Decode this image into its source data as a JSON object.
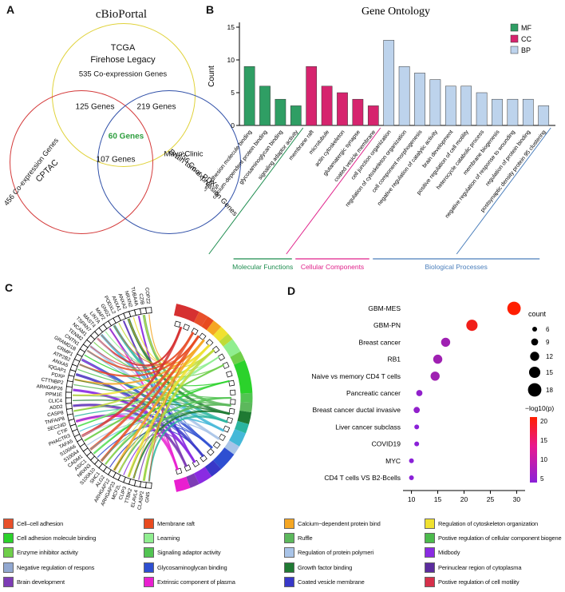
{
  "panel_labels": {
    "a": "A",
    "b": "B",
    "c": "C",
    "d": "D"
  },
  "venn": {
    "title": "cBioPortal",
    "tcga_line1": "TCGA",
    "tcga_line2": "Firehose Legacy",
    "tcga_count": "535 Co-expression Genes",
    "cptac_name": "CPTAC",
    "cptac_count": "456 Co-expression Genes",
    "mayo_line1": "Mayo Clinic",
    "mayo_line2": "Brain tumor PDXs",
    "mayo_count": "756 Co-expression Genes",
    "overlap_tcga_cptac": "125 Genes",
    "overlap_tcga_mayo": "219 Genes",
    "overlap_cptac_mayo": "107 Genes",
    "overlap_all": "60 Genes",
    "colors": {
      "tcga": "#E0D23A",
      "cptac": "#D43A3A",
      "mayo": "#3050A8",
      "center_text": "#2E9E3E"
    }
  },
  "chart_data": [
    {
      "type": "bar",
      "title": "Gene Ontology",
      "ylabel": "Count",
      "ylim": [
        0,
        15
      ],
      "yticks": [
        0,
        5,
        10,
        15
      ],
      "legend": [
        "MF",
        "CC",
        "BP"
      ],
      "groups": [
        {
          "name": "Molecular Functions",
          "abbr": "MF",
          "color": "#2F9E64",
          "label_color": "#1C8C4E"
        },
        {
          "name": "Cellular Components",
          "abbr": "CC",
          "color": "#D6246E",
          "label_color": "#E0218A"
        },
        {
          "name": "Biological Processes",
          "abbr": "BP",
          "color": "#BDD3EC",
          "label_color": "#4A7EBB"
        }
      ],
      "categories": [
        "cell adhesion molecule binding",
        "calcium-dependent protein binding",
        "glycosaminoglycan binding",
        "signaling adaptor activity",
        "membrane raft",
        "microtubule",
        "actin cytoskeleton",
        "glutamatergic synapse",
        "coated vesicle membrane",
        "cell junction organization",
        "regulation of cytoskeleton organization",
        "cell component morphogenesis",
        "negative regulation of catalytic activity",
        "brain development",
        "positive regulation of cell motility",
        "heterocycle catabolic process",
        "membrane biogenesis",
        "negative regulation of response to wounding",
        "regulation of protein binding",
        "postsynaptic density protein 95 clustering"
      ],
      "group_of": [
        0,
        0,
        0,
        0,
        1,
        1,
        1,
        1,
        1,
        2,
        2,
        2,
        2,
        2,
        2,
        2,
        2,
        2,
        2,
        2
      ],
      "values": [
        9,
        6,
        4,
        3,
        9,
        6,
        5,
        4,
        3,
        13,
        9,
        8,
        7,
        6,
        6,
        5,
        4,
        4,
        4,
        3
      ]
    },
    {
      "type": "scatter",
      "categories": [
        "GBM-MES",
        "GBM-PN",
        "Breast cancer",
        "RB1",
        "Naive vs memory CD4 T cells",
        "Pancreatic cancer",
        "Breast cancer ductal invasive",
        "Liver cancer subclass",
        "COVID19",
        "MYC",
        "CD4 T cells  VS B2-Bcells"
      ],
      "x": [
        29.5,
        21.5,
        16.5,
        15,
        14.5,
        11.5,
        11,
        11,
        11,
        10,
        10
      ],
      "count": [
        18,
        15,
        12,
        12,
        12,
        8,
        8,
        6,
        6,
        6,
        6
      ],
      "log10p": [
        22,
        20,
        8,
        8,
        8,
        6,
        6,
        5,
        5,
        5,
        5
      ],
      "xlim": [
        9,
        31
      ],
      "xticks": [
        10,
        15,
        20,
        25,
        30
      ],
      "size_legend": {
        "title": "count",
        "values": [
          6,
          9,
          12,
          15,
          18
        ]
      },
      "color_legend": {
        "title": "−log10(p)",
        "values": [
          20,
          15,
          10,
          5
        ],
        "high": "#FF2000",
        "mid": "#E81890",
        "low": "#8A20D8"
      }
    }
  ],
  "chord": {
    "genes": [
      "COPZ2",
      "CZIB",
      "TUBA4A",
      "NRXN2",
      "ANXA2",
      "ANXA1",
      "PODXL2",
      "GNG2",
      "MAP2",
      "LIN7A",
      "MAST4",
      "TSPAN7",
      "NCAM1",
      "TENM2",
      "CNTN1",
      "GRAMD1B",
      "CRMP1",
      "ATP2B2",
      "ANXA5",
      "IQGAP1",
      "PDXP",
      "CTTNBP2",
      "ARHGAP26",
      "PPM1E",
      "CLIC4",
      "ADD2",
      "CASP8",
      "TNFAIP8",
      "SEC24D",
      "CTIF",
      "PHACTR3",
      "TAFA5",
      "S100A6",
      "S100A4",
      "CADM1",
      "ASIC1",
      "NRXN3",
      "S100A10",
      "SHC1",
      "ALG2",
      "ARHGAP12",
      "ARHGAP23",
      "MCF2L",
      "CLIP3",
      "TTBK2",
      "ELAVL4",
      "CLASP2",
      "GNS"
    ],
    "term_colors": [
      "#D63031",
      "#E8502B",
      "#E84A1F",
      "#F5A623",
      "#F0E130",
      "#BFDB38",
      "#90EE90",
      "#6FCF4A",
      "#2BD22B",
      "#52C452",
      "#5CB85C",
      "#1F7A33",
      "#2AB5A0",
      "#45B8D8",
      "#A9C4E8",
      "#2E4FD1",
      "#3838C8",
      "#8A2BE2",
      "#7D3CB5",
      "#E91FD0"
    ],
    "term_weights": [
      10,
      4,
      3,
      4,
      4,
      3,
      6,
      4,
      14,
      4,
      4,
      5,
      4,
      6,
      4,
      8,
      5,
      6,
      4,
      6
    ]
  },
  "legend_grid": {
    "columns": [
      [
        {
          "label": "Cell–cell adhesion",
          "color": "#E8502B"
        },
        {
          "label": "Cell adhesion molecule binding",
          "color": "#2BD22B"
        },
        {
          "label": "Enzyme inhibitor activity",
          "color": "#6FCF4A"
        },
        {
          "label": "Negative regulation of respons",
          "color": "#92A8D1"
        },
        {
          "label": "Brain development",
          "color": "#7D3CB5"
        }
      ],
      [
        {
          "label": "Membrane raft",
          "color": "#E84A1F"
        },
        {
          "label": "Learning",
          "color": "#90EE90"
        },
        {
          "label": "Signaling adaptor activity",
          "color": "#52C452"
        },
        {
          "label": "Glycosaminoglycan binding",
          "color": "#2E4FD1"
        },
        {
          "label": "Extrinsic component of plasma",
          "color": "#E91FD0"
        }
      ],
      [
        {
          "label": "Calcium−dependent protein bind",
          "color": "#F5A623"
        },
        {
          "label": "Ruffle",
          "color": "#5CB85C"
        },
        {
          "label": "Regulation of protein polymeri",
          "color": "#A9C4E8"
        },
        {
          "label": "Growth factor binding",
          "color": "#1F7A33"
        },
        {
          "label": "Coated vesicle membrane",
          "color": "#3838C8"
        }
      ],
      [
        {
          "label": "Regulation of  cytoskeleton organization",
          "color": "#F0E130"
        },
        {
          "label": "Postive regulation of  cellular component biogene",
          "color": "#4CBB4C"
        },
        {
          "label": "Midbody",
          "color": "#8A2BE2"
        },
        {
          "label": "Perinuclear region of cytoplasma",
          "color": "#5B2C9E"
        },
        {
          "label": "Postive regulation of cell motility",
          "color": "#D6304A"
        }
      ]
    ]
  }
}
